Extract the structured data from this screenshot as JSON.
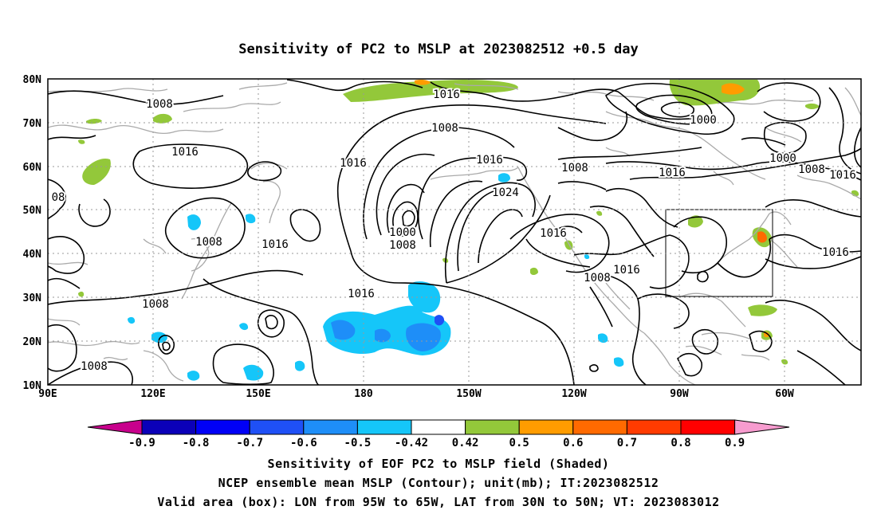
{
  "title": "Sensitivity of PC2 to MSLP at 2023082512 +0.5 day",
  "map": {
    "lat_labels": [
      "80N",
      "70N",
      "60N",
      "50N",
      "40N",
      "30N",
      "20N",
      "10N"
    ],
    "lon_labels": [
      "90E",
      "120E",
      "150E",
      "180",
      "150W",
      "120W",
      "90W",
      "60W"
    ],
    "lon_range_deg_east": [
      90,
      322
    ],
    "lat_range": [
      10,
      80
    ],
    "grid": "dotted",
    "coastlines_color": "#aaaaaa",
    "contour_color": "#000000"
  },
  "contour_labels": [
    "1008",
    "1016",
    "08",
    "1008",
    "1016",
    "1008",
    "1008",
    "1016",
    "1016",
    "1016",
    "1008",
    "1000",
    "1008",
    "1016",
    "1016",
    "1024",
    "1008",
    "1000",
    "1000",
    "1008",
    "1016",
    "1016",
    "1016",
    "1016",
    "1008"
  ],
  "valid_box": {
    "lon_from": "95W",
    "lon_to": "65W",
    "lat_from": "30N",
    "lat_to": "50N"
  },
  "colorbar": {
    "labels": [
      "-0.9",
      "-0.8",
      "-0.7",
      "-0.6",
      "-0.5",
      "-0.42",
      "0.42",
      "0.5",
      "0.6",
      "0.7",
      "0.8",
      "0.9"
    ],
    "colors": [
      "#0b00b8",
      "#0000f6",
      "#1f50f6",
      "#1e8ef8",
      "#15c6f9",
      "#ffffff",
      "#93c83a",
      "#ff9c00",
      "#ff6a00",
      "#ff3b00",
      "#ff0000"
    ],
    "low_extend_color": "#c8008c",
    "high_extend_color": "#f79ccf"
  },
  "captions": [
    "Sensitivity of EOF PC2 to MSLP field (Shaded)",
    "NCEP ensemble mean MSLP (Contour); unit(mb); IT:2023082512",
    "Valid area (box): LON from 95W to 65W, LAT from 30N to 50N; VT: 2023083012"
  ]
}
